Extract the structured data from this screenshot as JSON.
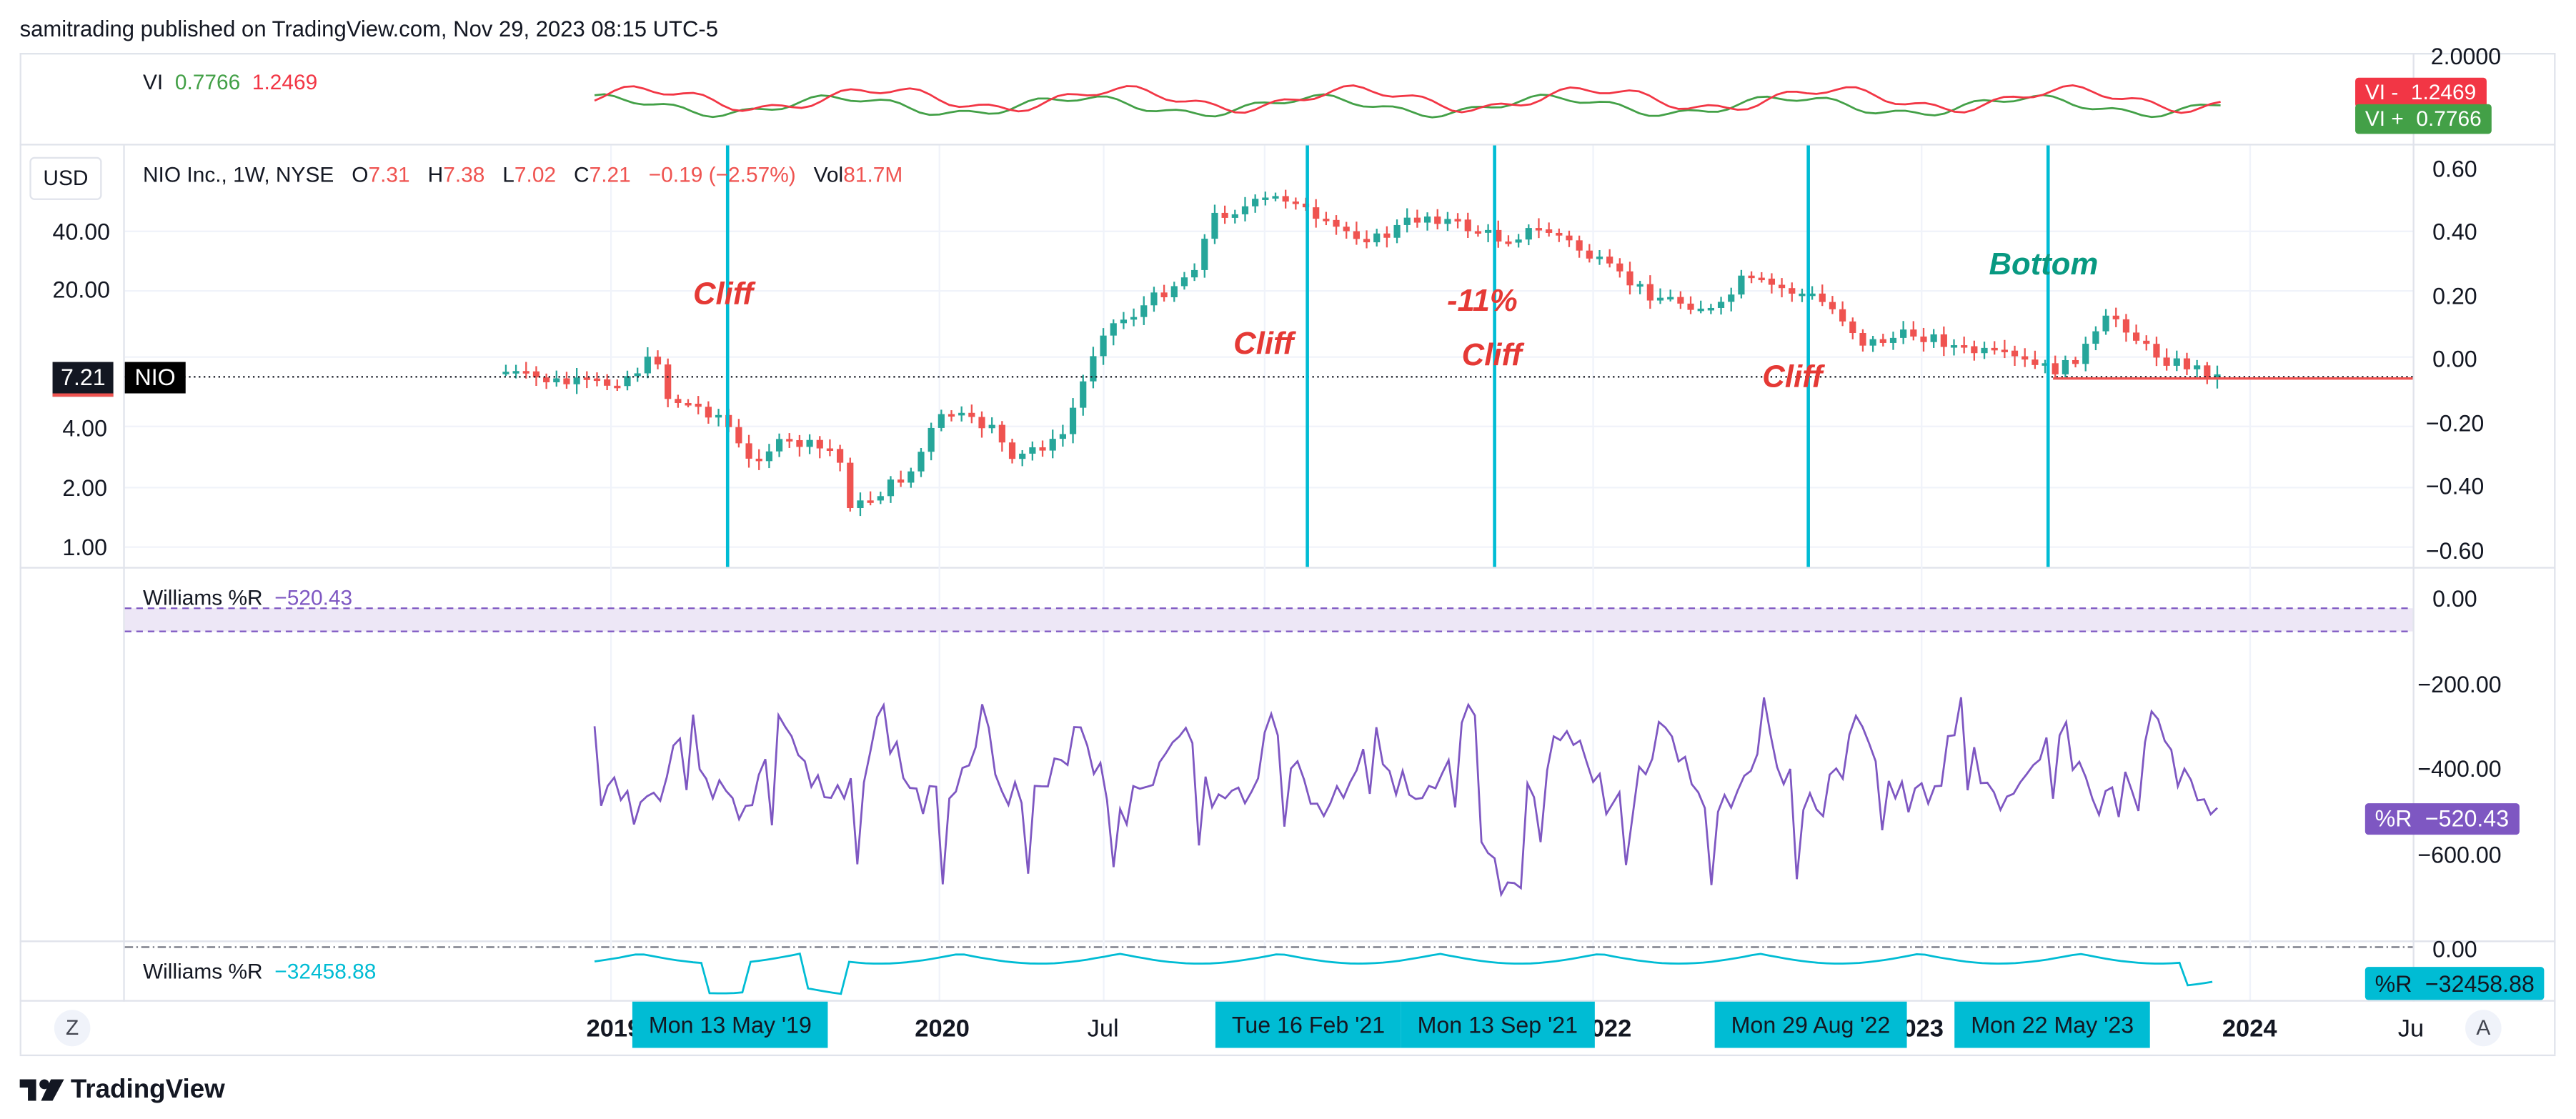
{
  "header": {
    "publisher": "samitrading published on TradingView.com, Nov 29, 2023 08:15 UTC-5"
  },
  "vi_pane": {
    "name": "VI",
    "value_plus": "0.7766",
    "value_minus": "1.2469",
    "tag_minus": "VI - ",
    "tag_plus": "VI + ",
    "color_plus": "#43a047",
    "color_minus": "#f23645",
    "scale_top": "2.0000"
  },
  "main_pane": {
    "currency_button": "USD",
    "symbol": "NIO Inc., 1W, NYSE",
    "o_label": "O",
    "o_value": "7.31",
    "h_label": "H",
    "h_value": "7.38",
    "l_label": "L",
    "l_value": "7.02",
    "c_label": "C",
    "c_value": "7.21",
    "change": "−0.19 (−2.57%)",
    "vol_label": "Vol",
    "vol_value": "81.7M",
    "price_tag": "7.21",
    "ticker_tag": "NIO",
    "left_scale": [
      "40.00",
      "20.00",
      "4.00",
      "2.00",
      "1.00"
    ],
    "right_scale": [
      "0.60",
      "0.40",
      "0.20",
      "0.00",
      "−0.20",
      "−0.40",
      "−0.60"
    ],
    "up_color": "#26a69a",
    "down_color": "#ef5350",
    "vline_color": "#00bcd4"
  },
  "annotations": [
    {
      "text": "Cliff",
      "color": "#e53935"
    },
    {
      "text": "Cliff",
      "color": "#e53935"
    },
    {
      "text": "-11%",
      "color": "#e53935"
    },
    {
      "text": "Cliff",
      "color": "#e53935"
    },
    {
      "text": "Cliff",
      "color": "#e53935"
    },
    {
      "text": "Bottom",
      "color": "#089981"
    }
  ],
  "wr_pane": {
    "name": "Williams %R",
    "value": "−520.43",
    "tag_label": "%R",
    "scale": [
      "0.00",
      "−200.00",
      "−400.00",
      "−600.00"
    ],
    "color": "#7e57c2"
  },
  "wr2_pane": {
    "name": "Williams %R",
    "value": "−32458.88",
    "tag_label": "%R",
    "scale_top": "0.00",
    "color": "#00bcd4"
  },
  "time_axis": {
    "labels": [
      "2019",
      "2020",
      "Jul",
      "2022",
      "2023",
      "2024",
      "Ju"
    ],
    "date_tags": [
      "Mon 13 May '19",
      "Tue 16 Feb '21",
      "Mon 13 Sep '21",
      "Mon 29 Aug '22",
      "Mon 22 May '23"
    ],
    "btn_left": "Z",
    "btn_right": "A"
  },
  "footer": {
    "brand": "TradingView"
  }
}
